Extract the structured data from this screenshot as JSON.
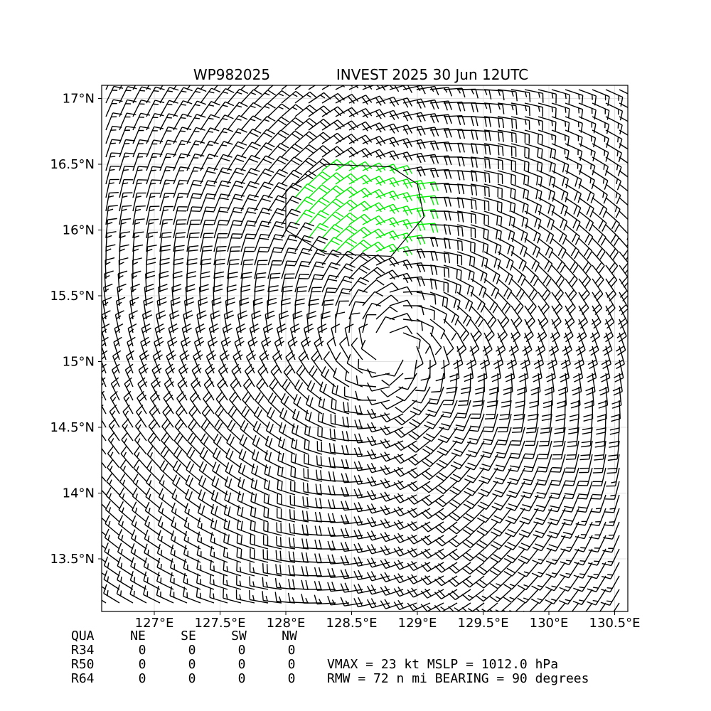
{
  "chart_data": {
    "type": "wind-barb-map",
    "title_left": "WP982025",
    "title_right": "INVEST 2025 30 Jun 12UTC",
    "x_range": [
      126.6,
      130.6
    ],
    "y_range": [
      13.1,
      17.1
    ],
    "x_ticks": [
      127.0,
      127.5,
      128.0,
      128.5,
      129.0,
      129.5,
      130.0,
      130.5
    ],
    "x_tick_labels": [
      "127°E",
      "127.5°E",
      "128°E",
      "128.5°E",
      "129°E",
      "129.5°E",
      "130°E",
      "130.5°E"
    ],
    "y_ticks": [
      13.5,
      14.0,
      14.5,
      15.0,
      15.5,
      16.0,
      16.5,
      17.0
    ],
    "y_tick_labels": [
      "13.5°N",
      "14°N",
      "14.5°N",
      "15°N",
      "15.5°N",
      "16°N",
      "16.5°N",
      "17°N"
    ],
    "grid": true,
    "storm_center": [
      128.8,
      15.1
    ],
    "circulation": "cyclonic",
    "max_wind_kt": 23,
    "highlight_color": "#00ee00",
    "barb_color": "#000000",
    "highlight_region": [
      [
        128.0,
        16.3
      ],
      [
        128.3,
        16.5
      ],
      [
        128.8,
        16.48
      ],
      [
        129.0,
        16.35
      ],
      [
        129.05,
        16.1
      ],
      [
        128.8,
        15.8
      ],
      [
        128.3,
        15.82
      ],
      [
        128.0,
        16.0
      ]
    ]
  },
  "table": {
    "headers": [
      "QUA",
      "NE",
      "SE",
      "SW",
      "NW"
    ],
    "rows": [
      {
        "label": "R34",
        "values": [
          "0",
          "0",
          "0",
          "0"
        ]
      },
      {
        "label": "R50",
        "values": [
          "0",
          "0",
          "0",
          "0"
        ]
      },
      {
        "label": "R64",
        "values": [
          "0",
          "0",
          "0",
          "0"
        ]
      }
    ]
  },
  "stats": {
    "line1": "VMAX =  23 kt MSLP = 1012.0 hPa",
    "line2": "RMW =  72 n mi BEARING =  90 degrees"
  }
}
